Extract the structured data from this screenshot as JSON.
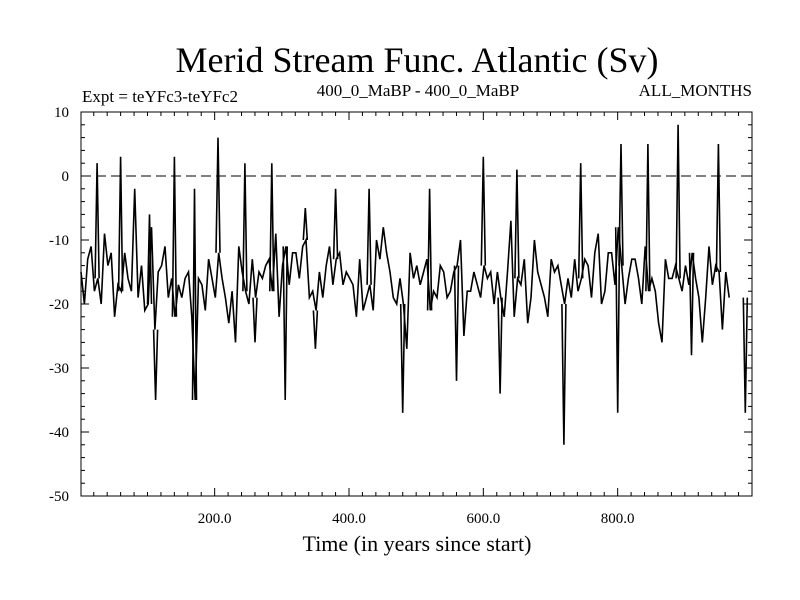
{
  "chart_data": {
    "type": "line",
    "title": "Merid Stream Func. Atlantic (Sv)",
    "subtitle_left": "Expt = teYFc3-teYFc2",
    "subtitle_center": "400_0_MaBP - 400_0_MaBP",
    "subtitle_right": "ALL_MONTHS",
    "xlabel": "Time (in years since start)",
    "ylabel": "",
    "xlim": [
      1,
      1000
    ],
    "ylim": [
      -50,
      10
    ],
    "x_ticks": [
      200,
      400,
      600,
      800
    ],
    "x_tick_labels": [
      "200.0",
      "400.0",
      "600.0",
      "800.0"
    ],
    "y_ticks": [
      10,
      0,
      -10,
      -20,
      -30,
      -40,
      -50
    ],
    "y_tick_labels": [
      "10",
      "0",
      "-10",
      "-20",
      "-30",
      "-40",
      "-50"
    ],
    "reference_line": {
      "y": 0,
      "style": "dashed"
    },
    "series": [
      {
        "name": "Merid Stream Func. Atlantic",
        "x_start": 1,
        "x_step": 5,
        "values": [
          -15,
          -20,
          -13,
          -11,
          -18,
          -16,
          -20,
          -9,
          -14,
          -12,
          -22,
          -17,
          -18,
          -12,
          -16,
          -18,
          -2,
          -19,
          -14,
          -21,
          -20,
          -8,
          -24,
          -15,
          -14,
          -11,
          -19,
          -16,
          -22,
          -17,
          -19,
          -16,
          -15,
          -22,
          -35,
          -16,
          -17,
          -21,
          -13,
          -16,
          -19,
          -12,
          -16,
          -19,
          -23,
          -18,
          -26,
          -11,
          -15,
          -18,
          -20,
          -13,
          -19,
          -15,
          -16,
          -14,
          -13,
          -18,
          -9,
          -22,
          -14,
          -11,
          -17,
          -12,
          -12,
          -16,
          -11,
          -10,
          -19,
          -18,
          -21,
          -15,
          -19,
          -14,
          -11,
          -17,
          -13,
          -12,
          -17,
          -15,
          -16,
          -17,
          -22,
          -13,
          -21,
          -19,
          -17,
          -21,
          -10,
          -13,
          -8,
          -12,
          -15,
          -19,
          -20,
          -16,
          -20,
          -27,
          -12,
          -16,
          -14,
          -17,
          -15,
          -13,
          -21,
          -18,
          -19,
          -14,
          -15,
          -19,
          -18,
          -15,
          -14,
          -10,
          -25,
          -18,
          -18,
          -15,
          -17,
          -19,
          -14,
          -16,
          -15,
          -20,
          -15,
          -19,
          -22,
          -15,
          -7,
          -22,
          -16,
          -17,
          -13,
          -23,
          -19,
          -10,
          -15,
          -17,
          -19,
          -22,
          -13,
          -15,
          -14,
          -17,
          -20,
          -16,
          -19,
          -13,
          -18,
          -16,
          -13,
          -14,
          -19,
          -12,
          -9,
          -20,
          -18,
          -12,
          -12,
          -17,
          -8,
          -14,
          -20,
          -16,
          -13,
          -13,
          -16,
          -20,
          -11,
          -18,
          -16,
          -18,
          -23,
          -26,
          -13,
          -16,
          -16,
          -14,
          -16,
          -18,
          -14,
          -17,
          -12,
          -16,
          -19,
          -26,
          -19,
          -11,
          -17,
          -14,
          -15,
          -24,
          -15,
          -19
        ]
      }
    ],
    "spikes": [
      {
        "x": 25,
        "value": 2
      },
      {
        "x": 60,
        "value": 3
      },
      {
        "x": 103,
        "value": -6
      },
      {
        "x": 112,
        "value": -35
      },
      {
        "x": 140,
        "value": 3
      },
      {
        "x": 170,
        "value": -2
      },
      {
        "x": 205,
        "value": 6
      },
      {
        "x": 245,
        "value": 2
      },
      {
        "x": 260,
        "value": -26
      },
      {
        "x": 285,
        "value": 2
      },
      {
        "x": 305,
        "value": -35
      },
      {
        "x": 335,
        "value": -5
      },
      {
        "x": 350,
        "value": -27
      },
      {
        "x": 380,
        "value": -2
      },
      {
        "x": 430,
        "value": -2
      },
      {
        "x": 480,
        "value": -37
      },
      {
        "x": 520,
        "value": -2
      },
      {
        "x": 560,
        "value": -32
      },
      {
        "x": 600,
        "value": 3
      },
      {
        "x": 625,
        "value": -34
      },
      {
        "x": 650,
        "value": 1
      },
      {
        "x": 720,
        "value": -42
      },
      {
        "x": 745,
        "value": 2
      },
      {
        "x": 800,
        "value": -37
      },
      {
        "x": 805,
        "value": 5
      },
      {
        "x": 845,
        "value": 5
      },
      {
        "x": 890,
        "value": 8
      },
      {
        "x": 910,
        "value": -28
      },
      {
        "x": 950,
        "value": 5
      },
      {
        "x": 990,
        "value": -37
      }
    ]
  }
}
